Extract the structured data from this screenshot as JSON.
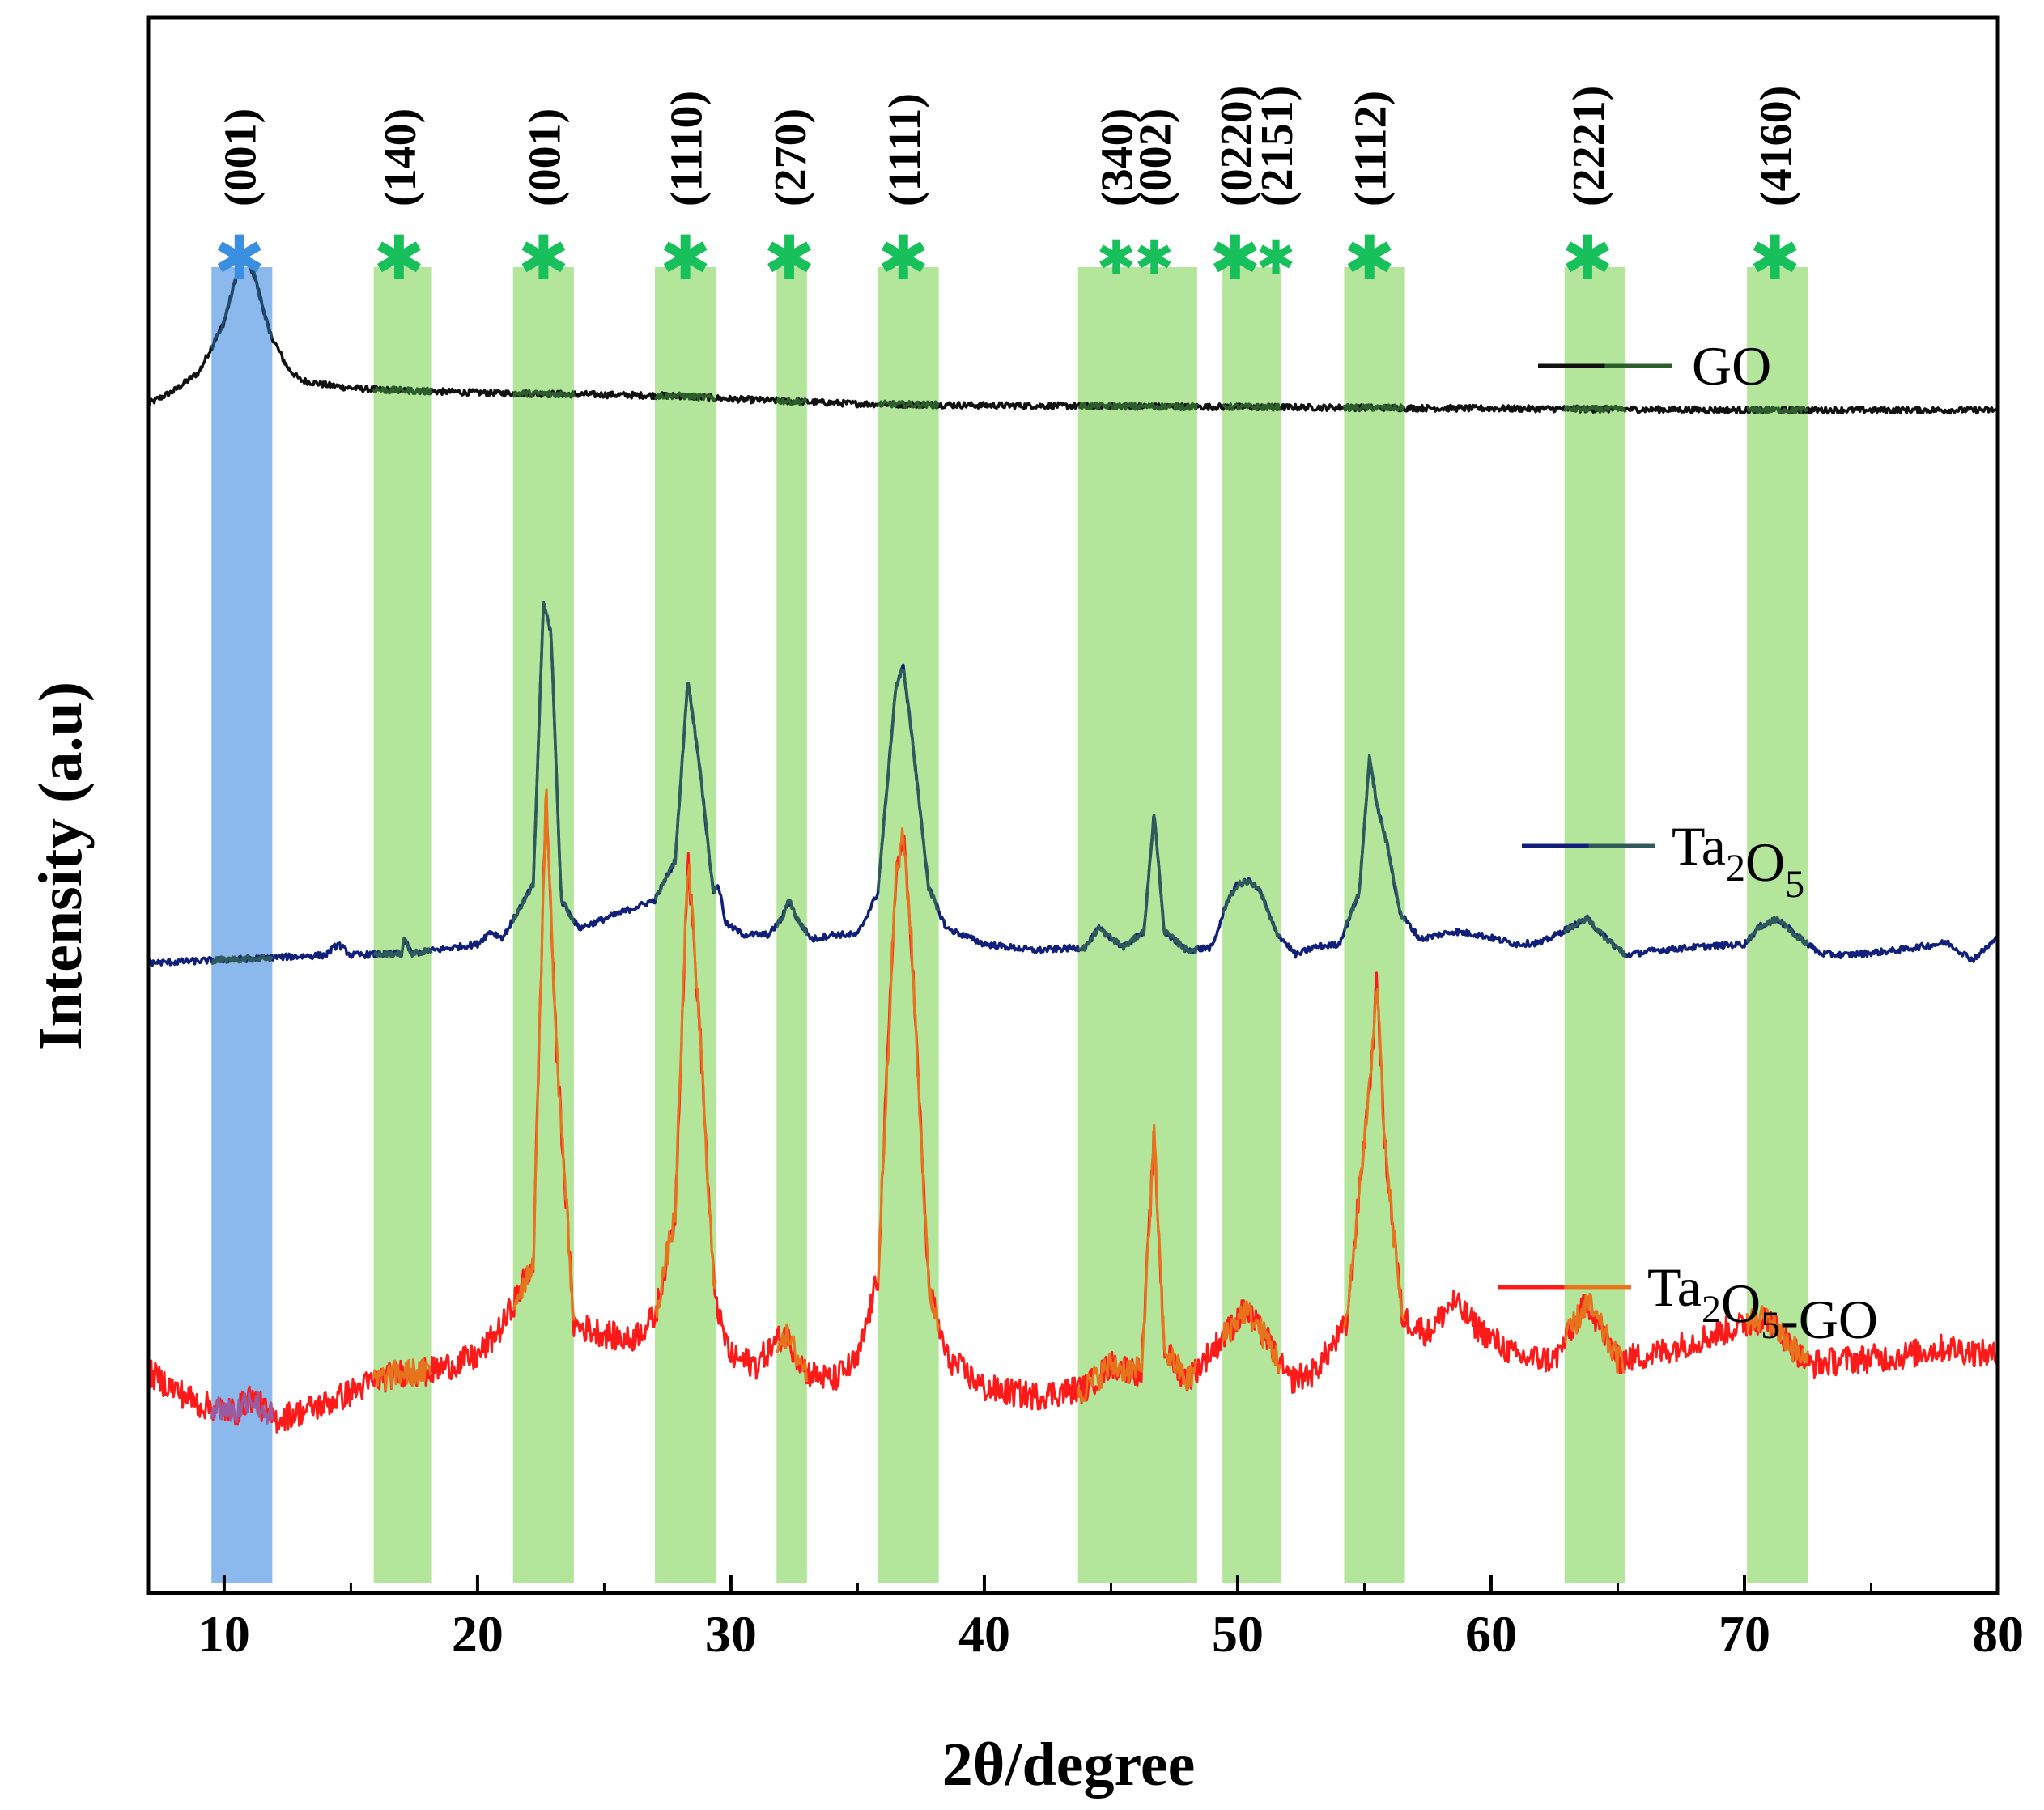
{
  "chart_data": {
    "type": "line",
    "xlabel": "2θ/degree",
    "ylabel": "Intensity (a.u)",
    "xlim": [
      7,
      80
    ],
    "ylim": [
      0,
      1000
    ],
    "x_ticks": [
      10,
      20,
      30,
      40,
      50,
      60,
      70,
      80
    ],
    "y_ticks_visible": false,
    "colors": {
      "band_blue": "#6fa8e8",
      "band_green": "#a6e08a",
      "star_blue": "#3b8fe0",
      "star_green": "#17c05a"
    },
    "bands": [
      {
        "label": "(001)",
        "range": [
          9.5,
          11.9
        ],
        "color": "blue",
        "marks": [
          10.6
        ]
      },
      {
        "label": "(140)",
        "range": [
          15.9,
          18.2
        ],
        "color": "green",
        "marks": [
          16.9
        ]
      },
      {
        "label": "(001)",
        "range": [
          21.4,
          23.8
        ],
        "color": "green",
        "marks": [
          22.6
        ]
      },
      {
        "label": "(1110)",
        "range": [
          27.0,
          29.4
        ],
        "color": "green",
        "marks": [
          28.2
        ]
      },
      {
        "label": "(270)",
        "range": [
          31.8,
          33.0
        ],
        "color": "green",
        "marks": [
          32.3
        ]
      },
      {
        "label": "(1111)",
        "range": [
          35.8,
          38.2
        ],
        "color": "green",
        "marks": [
          36.8
        ]
      },
      {
        "label": "(340)",
        "range": [
          43.7,
          48.4
        ],
        "color": "green",
        "marks": [
          45.2
        ]
      },
      {
        "label": "(002)",
        "range": null,
        "color": "green",
        "marks": [
          46.7
        ]
      },
      {
        "label": "(0220)",
        "range": [
          49.4,
          51.7
        ],
        "color": "green",
        "marks": [
          49.9
        ]
      },
      {
        "label": "(2151)",
        "range": null,
        "color": "green",
        "marks": [
          51.5
        ]
      },
      {
        "label": "(1112)",
        "range": [
          54.2,
          56.6
        ],
        "color": "green",
        "marks": [
          55.2
        ]
      },
      {
        "label": "(2221)",
        "range": [
          62.9,
          65.3
        ],
        "color": "green",
        "marks": [
          63.8
        ]
      },
      {
        "label": "(4160)",
        "range": [
          70.1,
          72.5
        ],
        "color": "green",
        "marks": [
          71.2
        ]
      }
    ],
    "series": [
      {
        "name": "GO",
        "color": "#111111",
        "baseline": 733,
        "x": [
          7,
          8,
          9,
          10,
          10.5,
          10.8,
          11.2,
          11.8,
          12.5,
          13,
          14,
          15,
          16,
          18,
          20,
          24,
          28,
          30,
          35,
          40,
          50,
          60,
          70,
          80
        ],
        "y": [
          755,
          763,
          775,
          807,
          837,
          850,
          836,
          800,
          778,
          770,
          767,
          765,
          764,
          763,
          762,
          761,
          760,
          758,
          755,
          754,
          753,
          752,
          751,
          751
        ],
        "noise": 2
      },
      {
        "name": "Ta2O5",
        "name_parts": [
          "Ta",
          "2",
          "O",
          "5"
        ],
        "color": "#0f1f7a",
        "baseline": 400,
        "x": [
          7,
          10,
          14,
          14.5,
          15,
          17,
          17.1,
          17.4,
          20,
          20.5,
          21,
          22.2,
          22.6,
          22.9,
          23.3,
          24,
          25,
          26,
          27,
          27.8,
          28.3,
          28.8,
          29.3,
          29.5,
          29.8,
          30.5,
          31.5,
          32.0,
          32.3,
          32.6,
          33.2,
          34,
          35,
          35.8,
          36.5,
          36.8,
          37.1,
          37.8,
          38.5,
          40,
          42,
          44,
          44.5,
          45.5,
          46.3,
          46.7,
          47.1,
          48,
          49,
          49.6,
          50.0,
          50.5,
          50.9,
          51.5,
          52.3,
          53,
          54,
          54.8,
          55.2,
          55.5,
          55.9,
          56.4,
          57.2,
          58.5,
          59.5,
          61,
          62,
          63.4,
          63.8,
          64.4,
          65.3,
          66.5,
          68,
          70,
          70.6,
          71.3,
          72.0,
          73,
          74,
          76,
          78,
          79,
          80
        ],
        "y": [
          400,
          402,
          405,
          412,
          405,
          406,
          415,
          406,
          412,
          420,
          416,
          450,
          628,
          610,
          440,
          422,
          428,
          434,
          440,
          465,
          580,
          520,
          445,
          450,
          425,
          418,
          418,
          428,
          440,
          428,
          415,
          418,
          418,
          445,
          575,
          588,
          550,
          448,
          422,
          412,
          408,
          410,
          422,
          410,
          420,
          495,
          420,
          408,
          410,
          440,
          450,
          452,
          445,
          420,
          405,
          410,
          412,
          445,
          530,
          500,
          475,
          432,
          415,
          420,
          418,
          412,
          413,
          425,
          428,
          418,
          405,
          408,
          410,
          412,
          423,
          428,
          418,
          406,
          405,
          408,
          413,
          402,
          416
        ],
        "noise": 2
      },
      {
        "name": "Ta2O5-GO",
        "name_parts": [
          "Ta",
          "2",
          "O",
          "5",
          "-GO"
        ],
        "color": "#ff1a1a",
        "overlay_color": "#e8731d",
        "baseline": 80,
        "x": [
          7,
          9,
          10.5,
          11,
          12,
          14,
          16,
          17,
          18,
          20,
          21,
          22.2,
          22.7,
          23.1,
          23.8,
          25,
          26,
          27,
          27.8,
          28.3,
          28.8,
          29.3,
          29.6,
          30,
          31,
          32.1,
          33,
          34,
          35,
          35.8,
          36.5,
          36.8,
          37.1,
          37.8,
          38.5,
          40,
          42,
          44,
          45,
          46.2,
          46.7,
          47.1,
          48,
          49.3,
          50.3,
          51.2,
          52,
          53,
          54.3,
          55.3,
          55.5,
          55.8,
          56.5,
          57.5,
          58.5,
          59.5,
          61,
          62.5,
          63.8,
          65,
          66.5,
          68,
          70.9,
          72.5,
          74,
          76,
          78,
          80
        ],
        "y": [
          140,
          120,
          115,
          125,
          110,
          120,
          135,
          140,
          140,
          150,
          170,
          210,
          510,
          350,
          170,
          165,
          160,
          175,
          240,
          468,
          350,
          200,
          170,
          150,
          145,
          165,
          140,
          135,
          148,
          200,
          455,
          480,
          420,
          195,
          150,
          130,
          125,
          130,
          145,
          140,
          290,
          155,
          135,
          160,
          180,
          160,
          135,
          140,
          170,
          340,
          390,
          285,
          175,
          165,
          185,
          168,
          150,
          148,
          185,
          148,
          152,
          160,
          175,
          145,
          148,
          150,
          156,
          150
        ],
        "noise": 9
      }
    ],
    "legend": [
      {
        "series": "GO"
      },
      {
        "series": "Ta2O5"
      },
      {
        "series": "Ta2O5-GO"
      }
    ]
  }
}
